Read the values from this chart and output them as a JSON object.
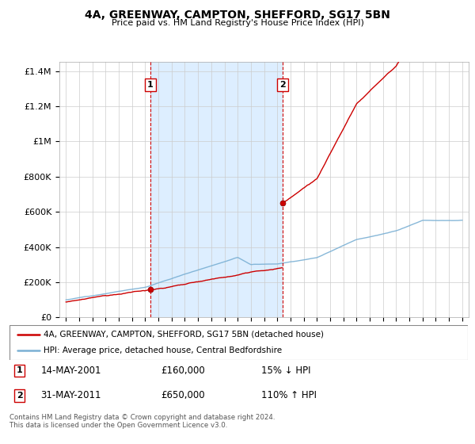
{
  "title": "4A, GREENWAY, CAMPTON, SHEFFORD, SG17 5BN",
  "subtitle": "Price paid vs. HM Land Registry's House Price Index (HPI)",
  "sale1_date": "14-MAY-2001",
  "sale1_price": 160000,
  "sale1_pct": "15% ↓ HPI",
  "sale1_year": 2001.37,
  "sale2_date": "31-MAY-2011",
  "sale2_price": 650000,
  "sale2_pct": "110% ↑ HPI",
  "sale2_year": 2011.41,
  "legend1": "4A, GREENWAY, CAMPTON, SHEFFORD, SG17 5BN (detached house)",
  "legend2": "HPI: Average price, detached house, Central Bedfordshire",
  "footer": "Contains HM Land Registry data © Crown copyright and database right 2024.\nThis data is licensed under the Open Government Licence v3.0.",
  "price_color": "#cc0000",
  "hpi_color": "#7ab0d4",
  "vline_color": "#cc0000",
  "shade_color": "#ddeeff",
  "bg_color": "#ffffff",
  "ylim_min": 0,
  "ylim_max": 1450000,
  "xlim_min": 1994.5,
  "xlim_max": 2025.5,
  "yticks": [
    0,
    200000,
    400000,
    600000,
    800000,
    1000000,
    1200000,
    1400000
  ],
  "ytick_labels": [
    "£0",
    "£200K",
    "£400K",
    "£600K",
    "£800K",
    "£1M",
    "£1.2M",
    "£1.4M"
  ]
}
